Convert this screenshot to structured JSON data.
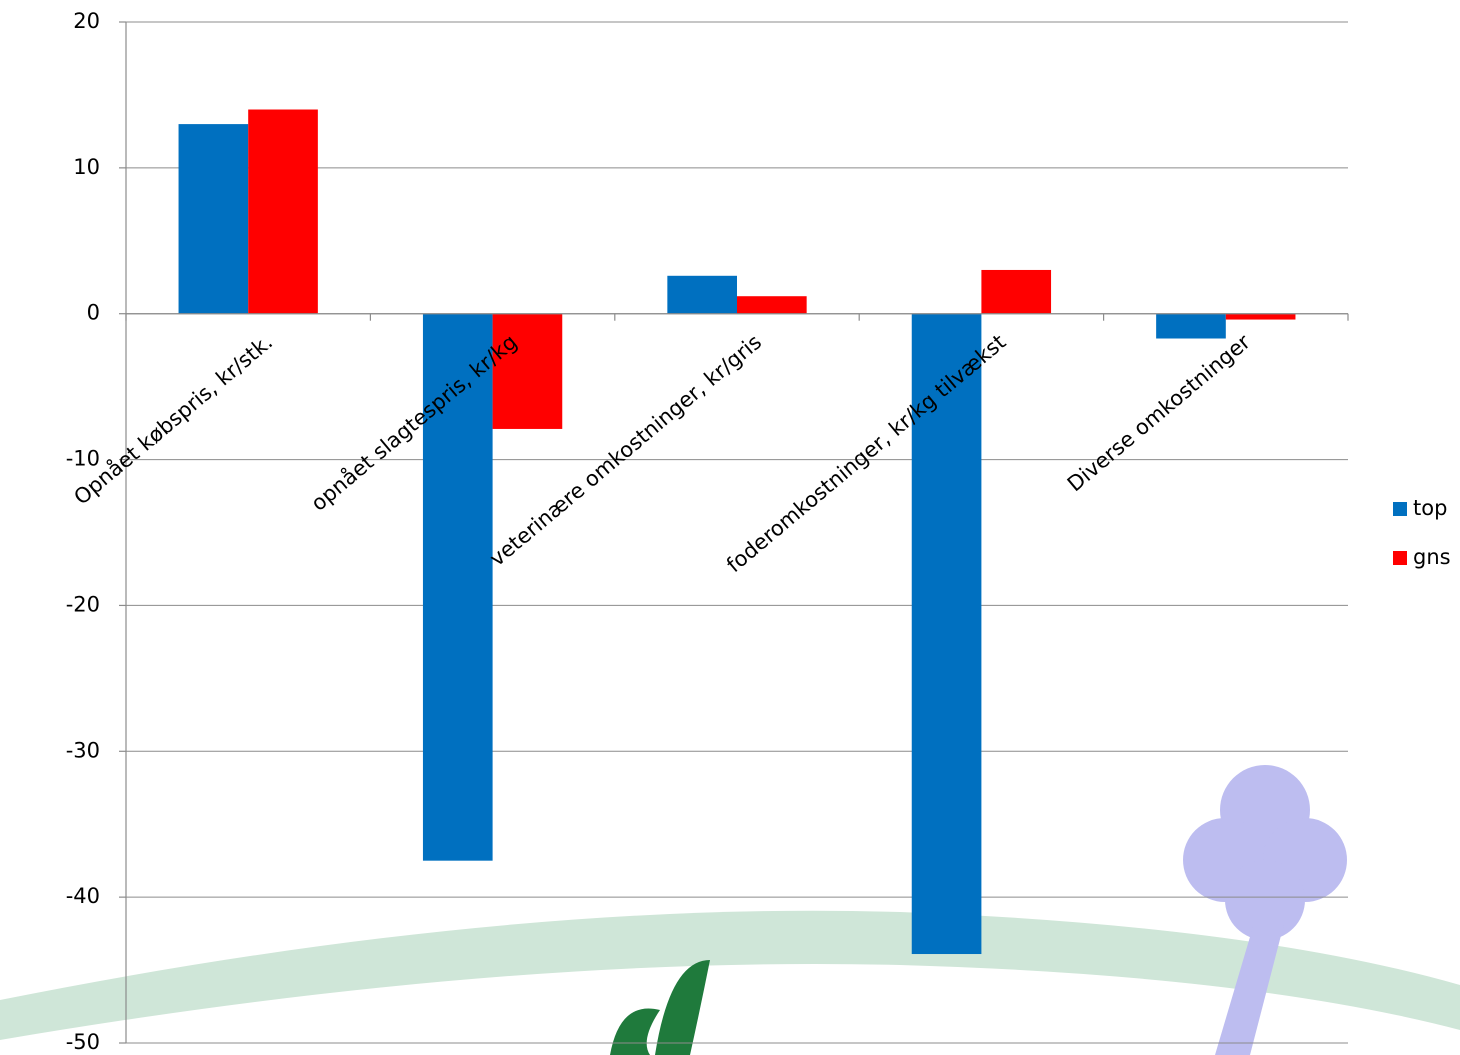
{
  "chart_data": {
    "type": "bar",
    "categories": [
      "Opnået købspris, kr/stk.",
      "opnået slagtespris, kr/kg",
      "veterinære omkostninger, kr/gris",
      "foderomkostninger, kr/kg tilvækst",
      "Diverse omkostninger"
    ],
    "series": [
      {
        "name": "top",
        "color": "#0070c0",
        "values": [
          13,
          -37.5,
          2.6,
          -43.9,
          -1.7
        ]
      },
      {
        "name": "gns",
        "color": "#ff0000",
        "values": [
          14,
          -7.9,
          1.2,
          3.0,
          -0.4
        ]
      }
    ],
    "ylim": [
      -50,
      20
    ],
    "yticks": [
      -50,
      -40,
      -30,
      -20,
      -10,
      0,
      10,
      20
    ],
    "grid": true,
    "legend": "right"
  }
}
